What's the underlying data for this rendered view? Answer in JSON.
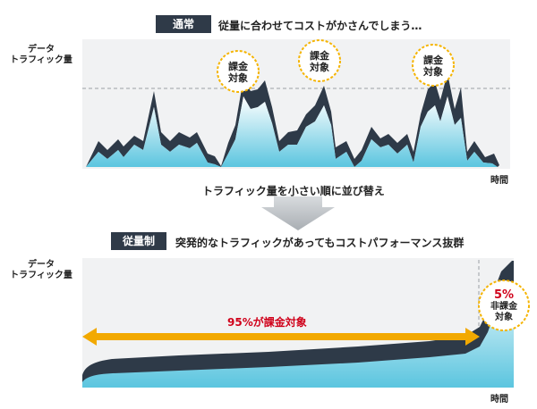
{
  "top": {
    "tag": "通常",
    "caption": "従量に合わせてコストがかさんでしまう…",
    "ylabel_line1": "データ",
    "ylabel_line2": "トラフィック量",
    "xlabel": "時間",
    "bursts": [
      {
        "line1": "課金",
        "line2": "対象"
      },
      {
        "line1": "課金",
        "line2": "対象"
      },
      {
        "line1": "課金",
        "line2": "対象"
      }
    ]
  },
  "middle": {
    "arrow_label": "トラフィック量を小さい順に並び替え"
  },
  "bottom": {
    "tag": "従量制",
    "caption": "突発的なトラフィックがあってもコストパフォーマンス抜群",
    "ylabel_line1": "データ",
    "ylabel_line2": "トラフィック量",
    "xlabel": "時間",
    "arrow_label": "95%が課金対象",
    "burst": {
      "line1": "5%",
      "line2": "非課金",
      "line3": "対象"
    }
  },
  "colors": {
    "tag_bg": "#2f3a48",
    "panel_bg": "#f1f2f3",
    "traffic_dark": "#2e3a48",
    "traffic_fill_light": "#e6f7fb",
    "traffic_fill_cyan": "#5bc5df",
    "highlight_orange": "#f2a900",
    "highlight_red": "#d0021b",
    "burst_border": "#f5b400"
  }
}
